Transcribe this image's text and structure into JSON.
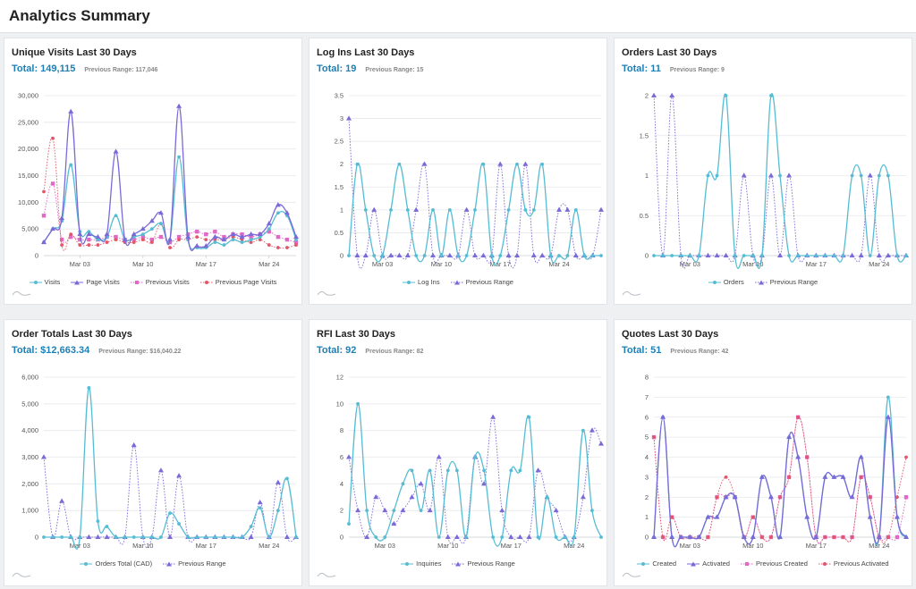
{
  "page": {
    "title": "Analytics Summary"
  },
  "colors": {
    "teal": "#56bcd3",
    "purple": "#7a6ad8",
    "pink": "#e069c6",
    "red": "#e0576a"
  },
  "x_ticks": [
    "Mar 03",
    "Mar 10",
    "Mar 17",
    "Mar 24"
  ],
  "cards": [
    {
      "title": "Unique Visits Last 30 Days",
      "total": "Total: 149,115",
      "previous": "Previous Range: 117,046",
      "chart_data": {
        "type": "line",
        "x_ticks": [
          "Mar 03",
          "Mar 10",
          "Mar 17",
          "Mar 24"
        ],
        "ylim": [
          0,
          30000
        ],
        "y_ticks": [
          "0",
          "5,000",
          "10,000",
          "15,000",
          "20,000",
          "25,000",
          "30,000"
        ],
        "series": [
          {
            "name": "Visits",
            "color": "teal",
            "marker": "circle",
            "dashed": false,
            "values": [
              2500,
              5000,
              6500,
              17000,
              4500,
              4500,
              3000,
              3500,
              7500,
              3000,
              3500,
              4000,
              5000,
              6000,
              3000,
              18500,
              3000,
              1500,
              1500,
              2500,
              2000,
              3000,
              2500,
              3000,
              3500,
              5000,
              8000,
              7500,
              3000
            ]
          },
          {
            "name": "Page Visits",
            "color": "purple",
            "marker": "triangle",
            "dashed": false,
            "values": [
              2500,
              5000,
              7000,
              27000,
              4000,
              4000,
              3500,
              4000,
              19500,
              3000,
              4000,
              5000,
              6500,
              8000,
              3000,
              28000,
              3500,
              1800,
              1800,
              3500,
              3000,
              4000,
              3500,
              4000,
              4000,
              6000,
              9500,
              8000,
              3500
            ]
          },
          {
            "name": "Previous Visits",
            "color": "pink",
            "marker": "square",
            "dashed": true,
            "values": [
              7500,
              13500,
              3000,
              3500,
              3000,
              3000,
              3000,
              3500,
              3500,
              3000,
              3000,
              3500,
              3000,
              3500,
              2500,
              3500,
              4000,
              4500,
              4000,
              4500,
              3500,
              4000,
              4000,
              3500,
              4000,
              4500,
              3500,
              3000,
              2500
            ]
          },
          {
            "name": "Previous Page Visits",
            "color": "red",
            "marker": "circle",
            "dashed": true,
            "values": [
              12000,
              22000,
              2000,
              4000,
              2000,
              2000,
              2000,
              2500,
              3000,
              2500,
              2500,
              3000,
              2500,
              6000,
              1500,
              3000,
              3000,
              3500,
              3000,
              3000,
              3000,
              3500,
              3000,
              2500,
              3000,
              2000,
              1500,
              1500,
              2000
            ]
          }
        ]
      }
    },
    {
      "title": "Log Ins Last 30 Days",
      "total": "Total: 19",
      "previous": "Previous Range: 15",
      "chart_data": {
        "type": "line",
        "x_ticks": [
          "Mar 03",
          "Mar 10",
          "Mar 17",
          "Mar 24"
        ],
        "ylim": [
          0,
          3.5
        ],
        "y_ticks": [
          "0",
          "0.5",
          "1",
          "1.5",
          "2",
          "2.5",
          "3",
          "3.5"
        ],
        "series": [
          {
            "name": "Log Ins",
            "color": "teal",
            "marker": "circle",
            "dashed": false,
            "values": [
              0,
              2,
              1,
              0,
              0,
              1,
              2,
              1,
              0,
              0,
              1,
              0,
              1,
              0,
              0,
              1,
              2,
              0,
              0,
              1,
              2,
              1,
              1,
              2,
              0,
              0,
              0,
              1,
              0,
              0,
              0
            ]
          },
          {
            "name": "Previous Range",
            "color": "purple",
            "marker": "triangle",
            "dashed": true,
            "values": [
              3,
              0,
              0,
              1,
              0,
              0,
              0,
              0,
              1,
              2,
              0,
              0,
              0,
              0,
              1,
              0,
              0,
              0,
              2,
              0,
              0,
              2,
              0,
              0,
              0,
              1,
              1,
              0,
              0,
              0,
              1
            ]
          }
        ]
      }
    },
    {
      "title": "Orders Last 30 Days",
      "total": "Total: 11",
      "previous": "Previous Range: 9",
      "chart_data": {
        "type": "line",
        "x_ticks": [
          "Mar 03",
          "Mar 10",
          "Mar 17",
          "Mar 24"
        ],
        "ylim": [
          0,
          2
        ],
        "y_ticks": [
          "0",
          "0.5",
          "1",
          "1.5",
          "2"
        ],
        "series": [
          {
            "name": "Orders",
            "color": "teal",
            "marker": "circle",
            "dashed": false,
            "values": [
              0,
              0,
              0,
              0,
              0,
              0,
              1,
              1,
              2,
              0,
              0,
              0,
              0,
              2,
              1,
              0,
              0,
              0,
              0,
              0,
              0,
              0,
              1,
              1,
              0,
              1,
              1,
              0,
              0
            ]
          },
          {
            "name": "Previous Range",
            "color": "purple",
            "marker": "triangle",
            "dashed": true,
            "values": [
              2,
              0,
              2,
              0,
              0,
              0,
              0,
              0,
              0,
              0,
              1,
              0,
              0,
              1,
              0,
              1,
              0,
              0,
              0,
              0,
              0,
              0,
              0,
              0,
              1,
              0,
              0,
              0,
              0
            ]
          }
        ]
      }
    },
    {
      "title": "Order Totals Last 30 Days",
      "total": "Total: $12,663.34",
      "previous": "Previous Range: $16,040.22",
      "chart_data": {
        "type": "line",
        "x_ticks": [
          "Mar 03",
          "Mar 10",
          "Mar 17",
          "Mar 24"
        ],
        "ylim": [
          0,
          6000
        ],
        "y_ticks": [
          "0",
          "1,000",
          "2,000",
          "3,000",
          "4,000",
          "5,000",
          "6,000"
        ],
        "series": [
          {
            "name": "Orders Total (CAD)",
            "color": "teal",
            "marker": "circle",
            "dashed": false,
            "values": [
              0,
              0,
              0,
              0,
              0,
              5600,
              600,
              400,
              0,
              0,
              0,
              0,
              0,
              0,
              900,
              500,
              0,
              0,
              0,
              0,
              0,
              0,
              0,
              400,
              1100,
              0,
              1000,
              2200,
              0
            ]
          },
          {
            "name": "Previous Range",
            "color": "purple",
            "marker": "triangle",
            "dashed": true,
            "values": [
              3000,
              0,
              1350,
              0,
              0,
              0,
              0,
              0,
              0,
              0,
              3450,
              0,
              0,
              2500,
              0,
              2300,
              0,
              0,
              0,
              0,
              0,
              0,
              0,
              0,
              1300,
              0,
              2050,
              0,
              0
            ]
          }
        ]
      }
    },
    {
      "title": "RFI Last 30 Days",
      "total": "Total: 92",
      "previous": "Previous Range: 82",
      "chart_data": {
        "type": "line",
        "x_ticks": [
          "Mar 03",
          "Mar 10",
          "Mar 17",
          "Mar 24"
        ],
        "ylim": [
          0,
          12
        ],
        "y_ticks": [
          "0",
          "2",
          "4",
          "6",
          "8",
          "10",
          "12"
        ],
        "series": [
          {
            "name": "Inquiries",
            "color": "teal",
            "marker": "circle",
            "dashed": false,
            "values": [
              1,
              10,
              2,
              0,
              0,
              2,
              4,
              5,
              2,
              5,
              0,
              5,
              5,
              0,
              6,
              5,
              0,
              0,
              5,
              5,
              9,
              0,
              3,
              0,
              0,
              0,
              8,
              2,
              0
            ]
          },
          {
            "name": "Previous Range",
            "color": "purple",
            "marker": "triangle",
            "dashed": true,
            "values": [
              6,
              2,
              0,
              3,
              2,
              1,
              2,
              3,
              4,
              2,
              6,
              0,
              0,
              0,
              6,
              4,
              9,
              2,
              0,
              0,
              0,
              5,
              3,
              2,
              0,
              0,
              3,
              8,
              7
            ]
          }
        ]
      }
    },
    {
      "title": "Quotes Last 30 Days",
      "total": "Total: 51",
      "previous": "Previous Range: 42",
      "chart_data": {
        "type": "line",
        "x_ticks": [
          "Mar 03",
          "Mar 10",
          "Mar 17",
          "Mar 24"
        ],
        "ylim": [
          0,
          8
        ],
        "y_ticks": [
          "0",
          "1",
          "2",
          "3",
          "4",
          "5",
          "6",
          "7",
          "8"
        ],
        "series": [
          {
            "name": "Created",
            "color": "teal",
            "marker": "circle",
            "dashed": false,
            "values": [
              0,
              6,
              0,
              0,
              0,
              0,
              1,
              1,
              2,
              2,
              0,
              0,
              3,
              2,
              0,
              5,
              4,
              1,
              0,
              3,
              3,
              3,
              2,
              4,
              1,
              0,
              7,
              1,
              0
            ]
          },
          {
            "name": "Activated",
            "color": "purple",
            "marker": "triangle",
            "dashed": false,
            "values": [
              0,
              6,
              0,
              0,
              0,
              0,
              1,
              1,
              2,
              2,
              0,
              0,
              3,
              2,
              0,
              5,
              4,
              1,
              0,
              3,
              3,
              3,
              2,
              4,
              1,
              0,
              6,
              1,
              0
            ]
          },
          {
            "name": "Previous Created",
            "color": "pink",
            "marker": "square",
            "dashed": true,
            "values": [
              5,
              0,
              1,
              0,
              0,
              0,
              0,
              2,
              2,
              2,
              0,
              1,
              0,
              0,
              2,
              3,
              6,
              4,
              0,
              0,
              0,
              0,
              0,
              3,
              2,
              0,
              0,
              0,
              2
            ]
          },
          {
            "name": "Previous Activated",
            "color": "red",
            "marker": "circle",
            "dashed": true,
            "values": [
              5,
              0,
              1,
              0,
              0,
              0,
              0,
              2,
              3,
              2,
              0,
              1,
              0,
              0,
              2,
              3,
              6,
              4,
              0,
              0,
              0,
              0,
              0,
              3,
              2,
              0,
              0,
              2,
              4
            ]
          }
        ]
      }
    }
  ]
}
